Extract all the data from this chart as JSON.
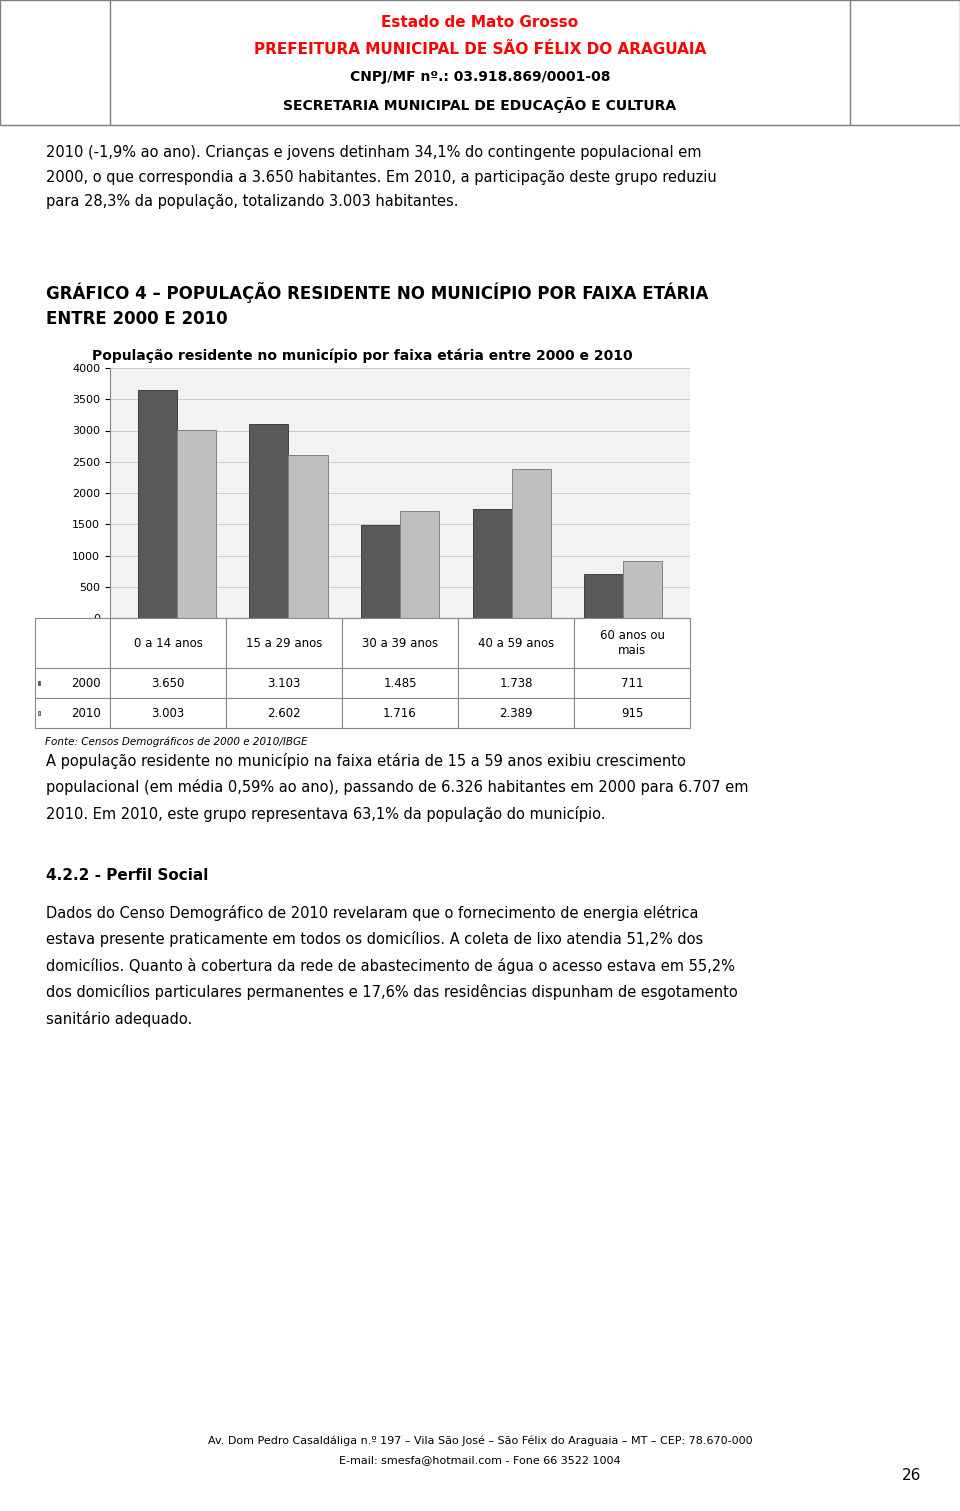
{
  "title": "População residente no município por faixa etária entre 2000 e 2010",
  "categories": [
    "0 a 14 anos",
    "15 a 29 anos",
    "30 a 39 anos",
    "40 a 59 anos",
    "60 anos ou\nmais"
  ],
  "values_2000": [
    3650,
    3103,
    1485,
    1738,
    711
  ],
  "values_2010": [
    3003,
    2602,
    1716,
    2389,
    915
  ],
  "color_2000": "#595959",
  "color_2010": "#bfbfbf",
  "legend_2000": "2000",
  "legend_2010": "2010",
  "table_rows": [
    [
      "2000",
      "3.650",
      "3.103",
      "1.485",
      "1.738",
      "711"
    ],
    [
      "2010",
      "3.003",
      "2.602",
      "1.716",
      "2.389",
      "915"
    ]
  ],
  "source_text": "Fonte: Censos Demográficos de 2000 e 2010/IBGE",
  "ylim": [
    0,
    4000
  ],
  "bar_width": 0.35,
  "background_color": "#ffffff",
  "chart_bg": "#f2f2f2",
  "grid_color": "#cccccc",
  "header_bg": "#dde3f0",
  "header_border": "#7f7f7f",
  "header_line1": "Estado de Mato Grosso",
  "header_line1_color": "#ff0000",
  "header_line2": "PREFEITURA MUNICIPAL DE SÃO FÉLIX DO ARAGUAIA",
  "header_line2_color": "#ff0000",
  "header_line3": "CNPJ/MF nº.: 03.918.869/0001-08",
  "header_line3_color": "#000000",
  "header_line4": "SECRETARIA MUNICIPAL DE EDUCAÇÃO E CULTURA",
  "header_line4_color": "#000000",
  "text_para1": "2010 (-1,9% ao ano). Crianças e jovens detinham 34,1% do contingente populacional em\n2000, o que correspondia a 3.650 habitantes. Em 2010, a participação deste grupo reduziu\npara 28,3% da população, totalizando 3.003 habitantes.",
  "grafico_heading": "GRÁFICO 4 – POPULAÇÃO RESIDENTE NO MUNICÍPIO POR FAIXA ETÁRIA\nENTRE 2000 E 2010",
  "text_para2": "A população residente no município na faixa etária de 15 a 59 anos exibiu crescimento\npopulacional (em média 0,59% ao ano), passando de 6.326 habitantes em 2000 para 6.707 em\n2010. Em 2010, este grupo representava 63,1% da população do município.",
  "section_heading": "4.2.2 - Perfil Social",
  "text_para3": "Dados do Censo Demográfico de 2010 revelaram que o fornecimento de energia elétrica\nestava presente praticamente em todos os domicílios. A coleta de lixo atendia 51,2% dos\ndomicílios. Quanto à cobertura da rede de abastecimento de água o acesso estava em 55,2%\ndos domicílios particulares permanentes e 17,6% das residências dispunham de esgotamento\nsanitário adequado.",
  "footer_line1": "Av. Dom Pedro Casaldáliga n.º 197 – Vila São José – São Félix do Araguaia – MT – CEP: 78.670-000",
  "footer_line2": "E-mail: smesfa@hotmail.com - Fone 66 3522 1004",
  "page_number": "26"
}
